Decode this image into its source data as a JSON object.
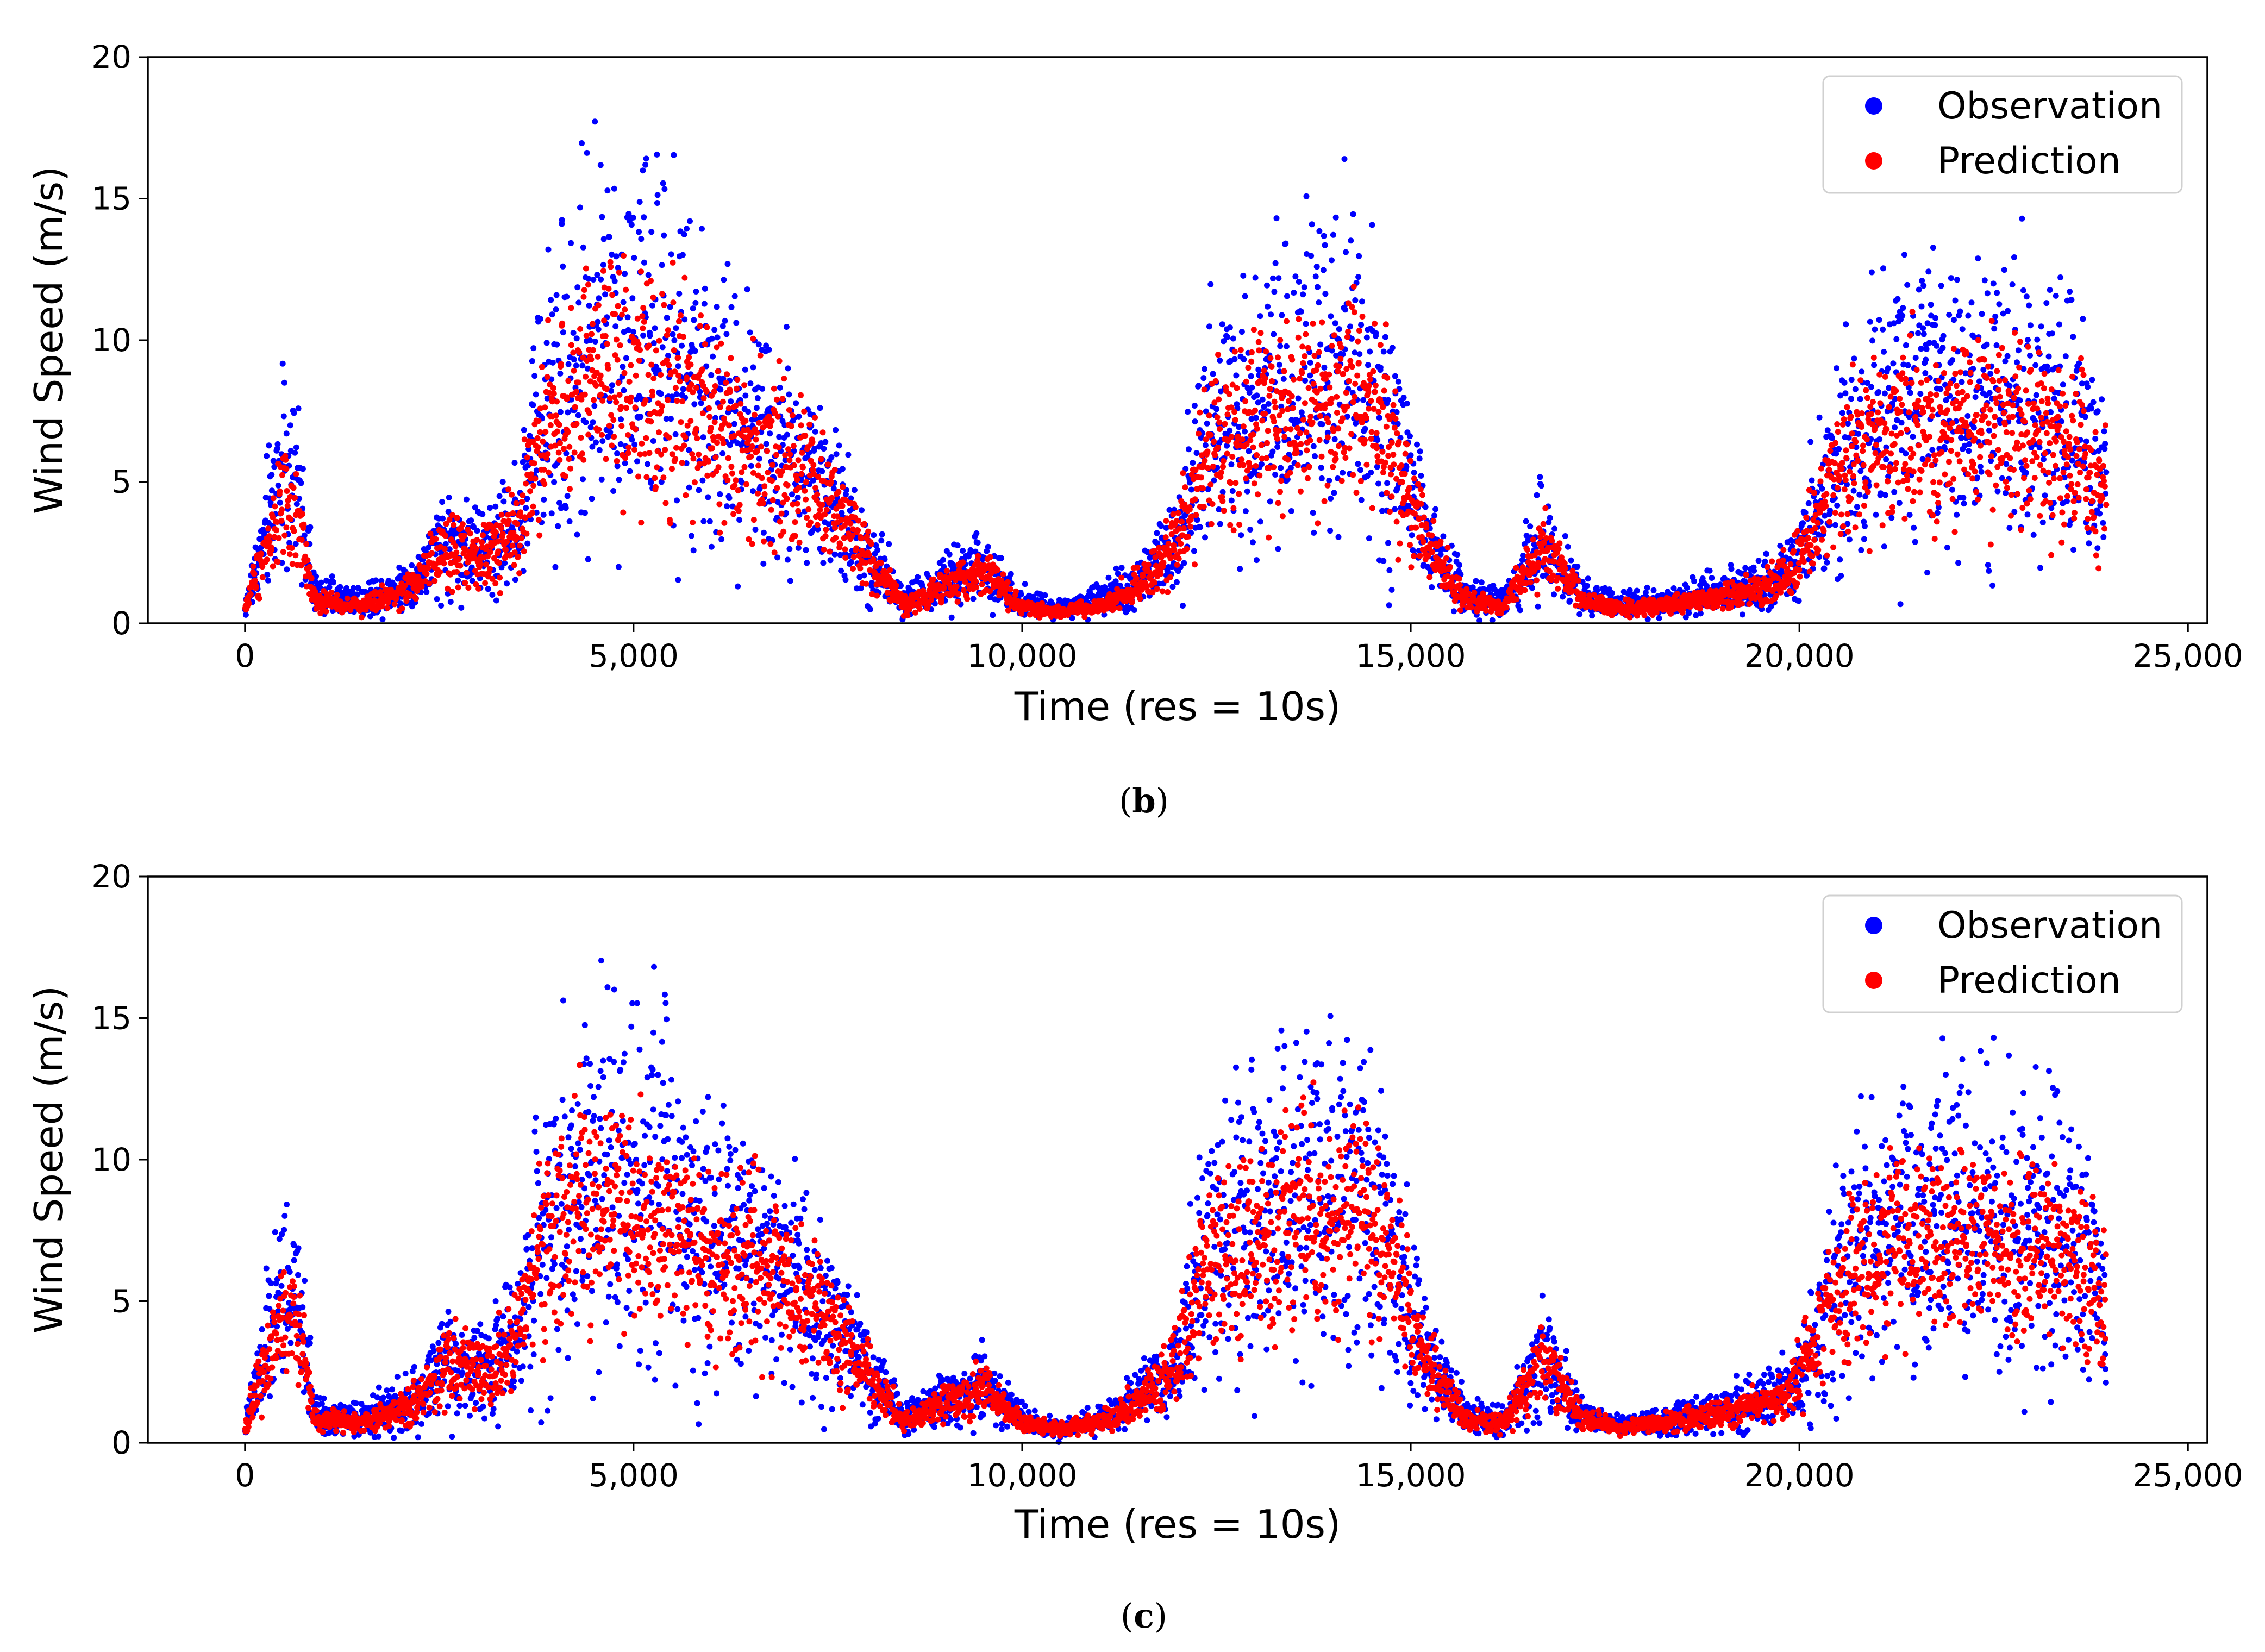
{
  "figure": {
    "description_labels": [
      "(b)",
      "(c)"
    ]
  },
  "chart_data": [
    {
      "panel_label": {
        "open": "(",
        "letter": "b",
        "close": ")"
      },
      "type": "scatter",
      "title": "",
      "xlabel": "Time (res = 10s)",
      "ylabel": "Wind Speed (m/s)",
      "xlim": [
        -1250,
        25250
      ],
      "ylim": [
        0,
        20
      ],
      "xticks": [
        0,
        5000,
        10000,
        15000,
        20000,
        25000
      ],
      "xtick_labels": [
        "0",
        "5,000",
        "10,000",
        "15,000",
        "20,000",
        "25,000"
      ],
      "yticks": [
        0,
        5,
        10,
        15,
        20
      ],
      "ytick_labels": [
        "0",
        "5",
        "10",
        "15",
        "20"
      ],
      "grid": false,
      "legend": {
        "position": "top-right",
        "entries": [
          "Observation",
          "Prediction"
        ]
      },
      "series": [
        {
          "name": "Observation",
          "color": "#0000ff",
          "description": "~24,000 samples at 10 s resolution; envelope of observed wind speed",
          "x": [
            0,
            200,
            500,
            700,
            900,
            1500,
            2200,
            2600,
            3000,
            3500,
            3800,
            4200,
            4600,
            5000,
            5500,
            6000,
            6500,
            7000,
            7500,
            8000,
            8500,
            9000,
            9500,
            10000,
            10500,
            11000,
            11500,
            12000,
            12300,
            12700,
            13200,
            13700,
            14200,
            14700,
            15200,
            15700,
            16200,
            16700,
            17200,
            17700,
            18200,
            18700,
            19200,
            19700,
            20000,
            20400,
            20800,
            21200,
            21700,
            22200,
            22700,
            23200,
            23600,
            23900
          ],
          "y": [
            0.5,
            2.5,
            6.0,
            4.5,
            1.0,
            0.8,
            1.5,
            3.0,
            2.5,
            3.5,
            7.5,
            9.0,
            10.0,
            10.0,
            9.0,
            7.5,
            7.0,
            6.0,
            4.5,
            2.5,
            0.8,
            1.5,
            2.0,
            0.8,
            0.5,
            0.8,
            1.5,
            3.0,
            6.0,
            7.5,
            8.0,
            8.5,
            9.0,
            7.0,
            3.0,
            1.0,
            0.8,
            3.0,
            1.0,
            0.6,
            0.8,
            1.0,
            1.3,
            1.6,
            2.5,
            5.0,
            7.0,
            8.0,
            8.0,
            8.0,
            7.5,
            7.5,
            7.0,
            5.0
          ]
        },
        {
          "name": "Prediction",
          "color": "#ff0000",
          "description": "~24,000 samples at 10 s resolution; envelope of predicted wind speed",
          "x": [
            0,
            200,
            500,
            700,
            900,
            1500,
            2200,
            2600,
            3000,
            3500,
            3800,
            4200,
            4600,
            5000,
            5500,
            6000,
            6500,
            7000,
            7500,
            8000,
            8500,
            9000,
            9500,
            10000,
            10500,
            11000,
            11500,
            12000,
            12300,
            12700,
            13200,
            13700,
            14200,
            14700,
            15200,
            15700,
            16200,
            16700,
            17200,
            17700,
            18200,
            18700,
            19200,
            19700,
            20000,
            20400,
            20800,
            21200,
            21700,
            22200,
            22700,
            23200,
            23600,
            23900
          ],
          "y": [
            0.5,
            2.2,
            4.2,
            3.5,
            0.8,
            0.6,
            1.3,
            2.8,
            2.2,
            3.3,
            6.5,
            8.0,
            8.8,
            8.8,
            8.0,
            6.8,
            6.5,
            5.6,
            4.2,
            2.3,
            0.6,
            1.3,
            1.8,
            0.6,
            0.4,
            0.6,
            1.3,
            2.8,
            5.5,
            6.8,
            7.2,
            7.6,
            8.0,
            6.5,
            2.8,
            0.8,
            0.6,
            2.8,
            0.8,
            0.5,
            0.6,
            0.8,
            1.1,
            1.4,
            2.3,
            4.6,
            6.2,
            7.0,
            7.0,
            7.2,
            6.8,
            6.6,
            6.2,
            4.6
          ]
        }
      ]
    },
    {
      "panel_label": {
        "open": "(",
        "letter": "c",
        "close": ")"
      },
      "type": "scatter",
      "title": "",
      "xlabel": "Time (res = 10s)",
      "ylabel": "Wind Speed (m/s)",
      "xlim": [
        -1250,
        25250
      ],
      "ylim": [
        0,
        20
      ],
      "xticks": [
        0,
        5000,
        10000,
        15000,
        20000,
        25000
      ],
      "xtick_labels": [
        "0",
        "5,000",
        "10,000",
        "15,000",
        "20,000",
        "25,000"
      ],
      "yticks": [
        0,
        5,
        10,
        15,
        20
      ],
      "ytick_labels": [
        "0",
        "5",
        "10",
        "15",
        "20"
      ],
      "grid": false,
      "legend": {
        "position": "top-right",
        "entries": [
          "Observation",
          "Prediction"
        ]
      },
      "series": [
        {
          "name": "Observation",
          "color": "#0000ff",
          "description": "~24,000 samples at 10 s resolution; envelope of observed wind speed",
          "x": [
            0,
            200,
            500,
            700,
            900,
            1500,
            2200,
            2600,
            3000,
            3500,
            3800,
            4200,
            4600,
            5000,
            5500,
            6000,
            6500,
            7000,
            7500,
            8000,
            8500,
            9000,
            9500,
            10000,
            10500,
            11000,
            11500,
            12000,
            12300,
            12700,
            13200,
            13700,
            14200,
            14700,
            15200,
            15700,
            16200,
            16700,
            17200,
            17700,
            18200,
            18700,
            19200,
            19700,
            20000,
            20400,
            20800,
            21200,
            21700,
            22200,
            22700,
            23200,
            23600,
            23900
          ],
          "y": [
            0.5,
            2.5,
            6.0,
            4.5,
            1.0,
            0.8,
            1.5,
            3.0,
            2.5,
            3.5,
            7.5,
            9.0,
            10.0,
            10.0,
            9.0,
            7.5,
            7.0,
            6.0,
            4.5,
            2.5,
            0.8,
            1.5,
            2.0,
            0.8,
            0.5,
            0.8,
            1.5,
            3.0,
            6.0,
            7.5,
            8.0,
            8.5,
            9.0,
            7.0,
            3.0,
            1.0,
            0.8,
            3.0,
            1.0,
            0.6,
            0.8,
            1.0,
            1.3,
            1.6,
            2.5,
            5.0,
            7.0,
            8.0,
            8.0,
            8.0,
            7.5,
            7.5,
            7.0,
            5.0
          ]
        },
        {
          "name": "Prediction",
          "color": "#ff0000",
          "description": "~24,000 samples at 10 s resolution; envelope of predicted wind speed",
          "x": [
            0,
            200,
            500,
            700,
            900,
            1500,
            2200,
            2600,
            3000,
            3500,
            3800,
            4200,
            4600,
            5000,
            5500,
            6000,
            6500,
            7000,
            7500,
            8000,
            8500,
            9000,
            9500,
            10000,
            10500,
            11000,
            11500,
            12000,
            12300,
            12700,
            13200,
            13700,
            14200,
            14700,
            15200,
            15700,
            16200,
            16700,
            17200,
            17700,
            18200,
            18700,
            19200,
            19700,
            20000,
            20400,
            20800,
            21200,
            21700,
            22200,
            22700,
            23200,
            23600,
            23900
          ],
          "y": [
            0.5,
            2.4,
            4.5,
            3.8,
            0.9,
            0.7,
            1.4,
            2.9,
            2.4,
            3.4,
            6.8,
            8.2,
            8.5,
            8.4,
            7.6,
            6.6,
            6.4,
            5.6,
            4.3,
            2.4,
            0.7,
            1.4,
            1.9,
            0.7,
            0.5,
            0.7,
            1.4,
            2.9,
            5.8,
            6.9,
            7.3,
            7.8,
            8.2,
            6.6,
            2.9,
            0.9,
            0.7,
            2.9,
            0.9,
            0.5,
            0.7,
            0.9,
            1.2,
            1.5,
            2.4,
            5.2,
            6.3,
            7.0,
            7.1,
            7.5,
            7.0,
            6.8,
            6.3,
            4.8
          ]
        }
      ]
    }
  ]
}
